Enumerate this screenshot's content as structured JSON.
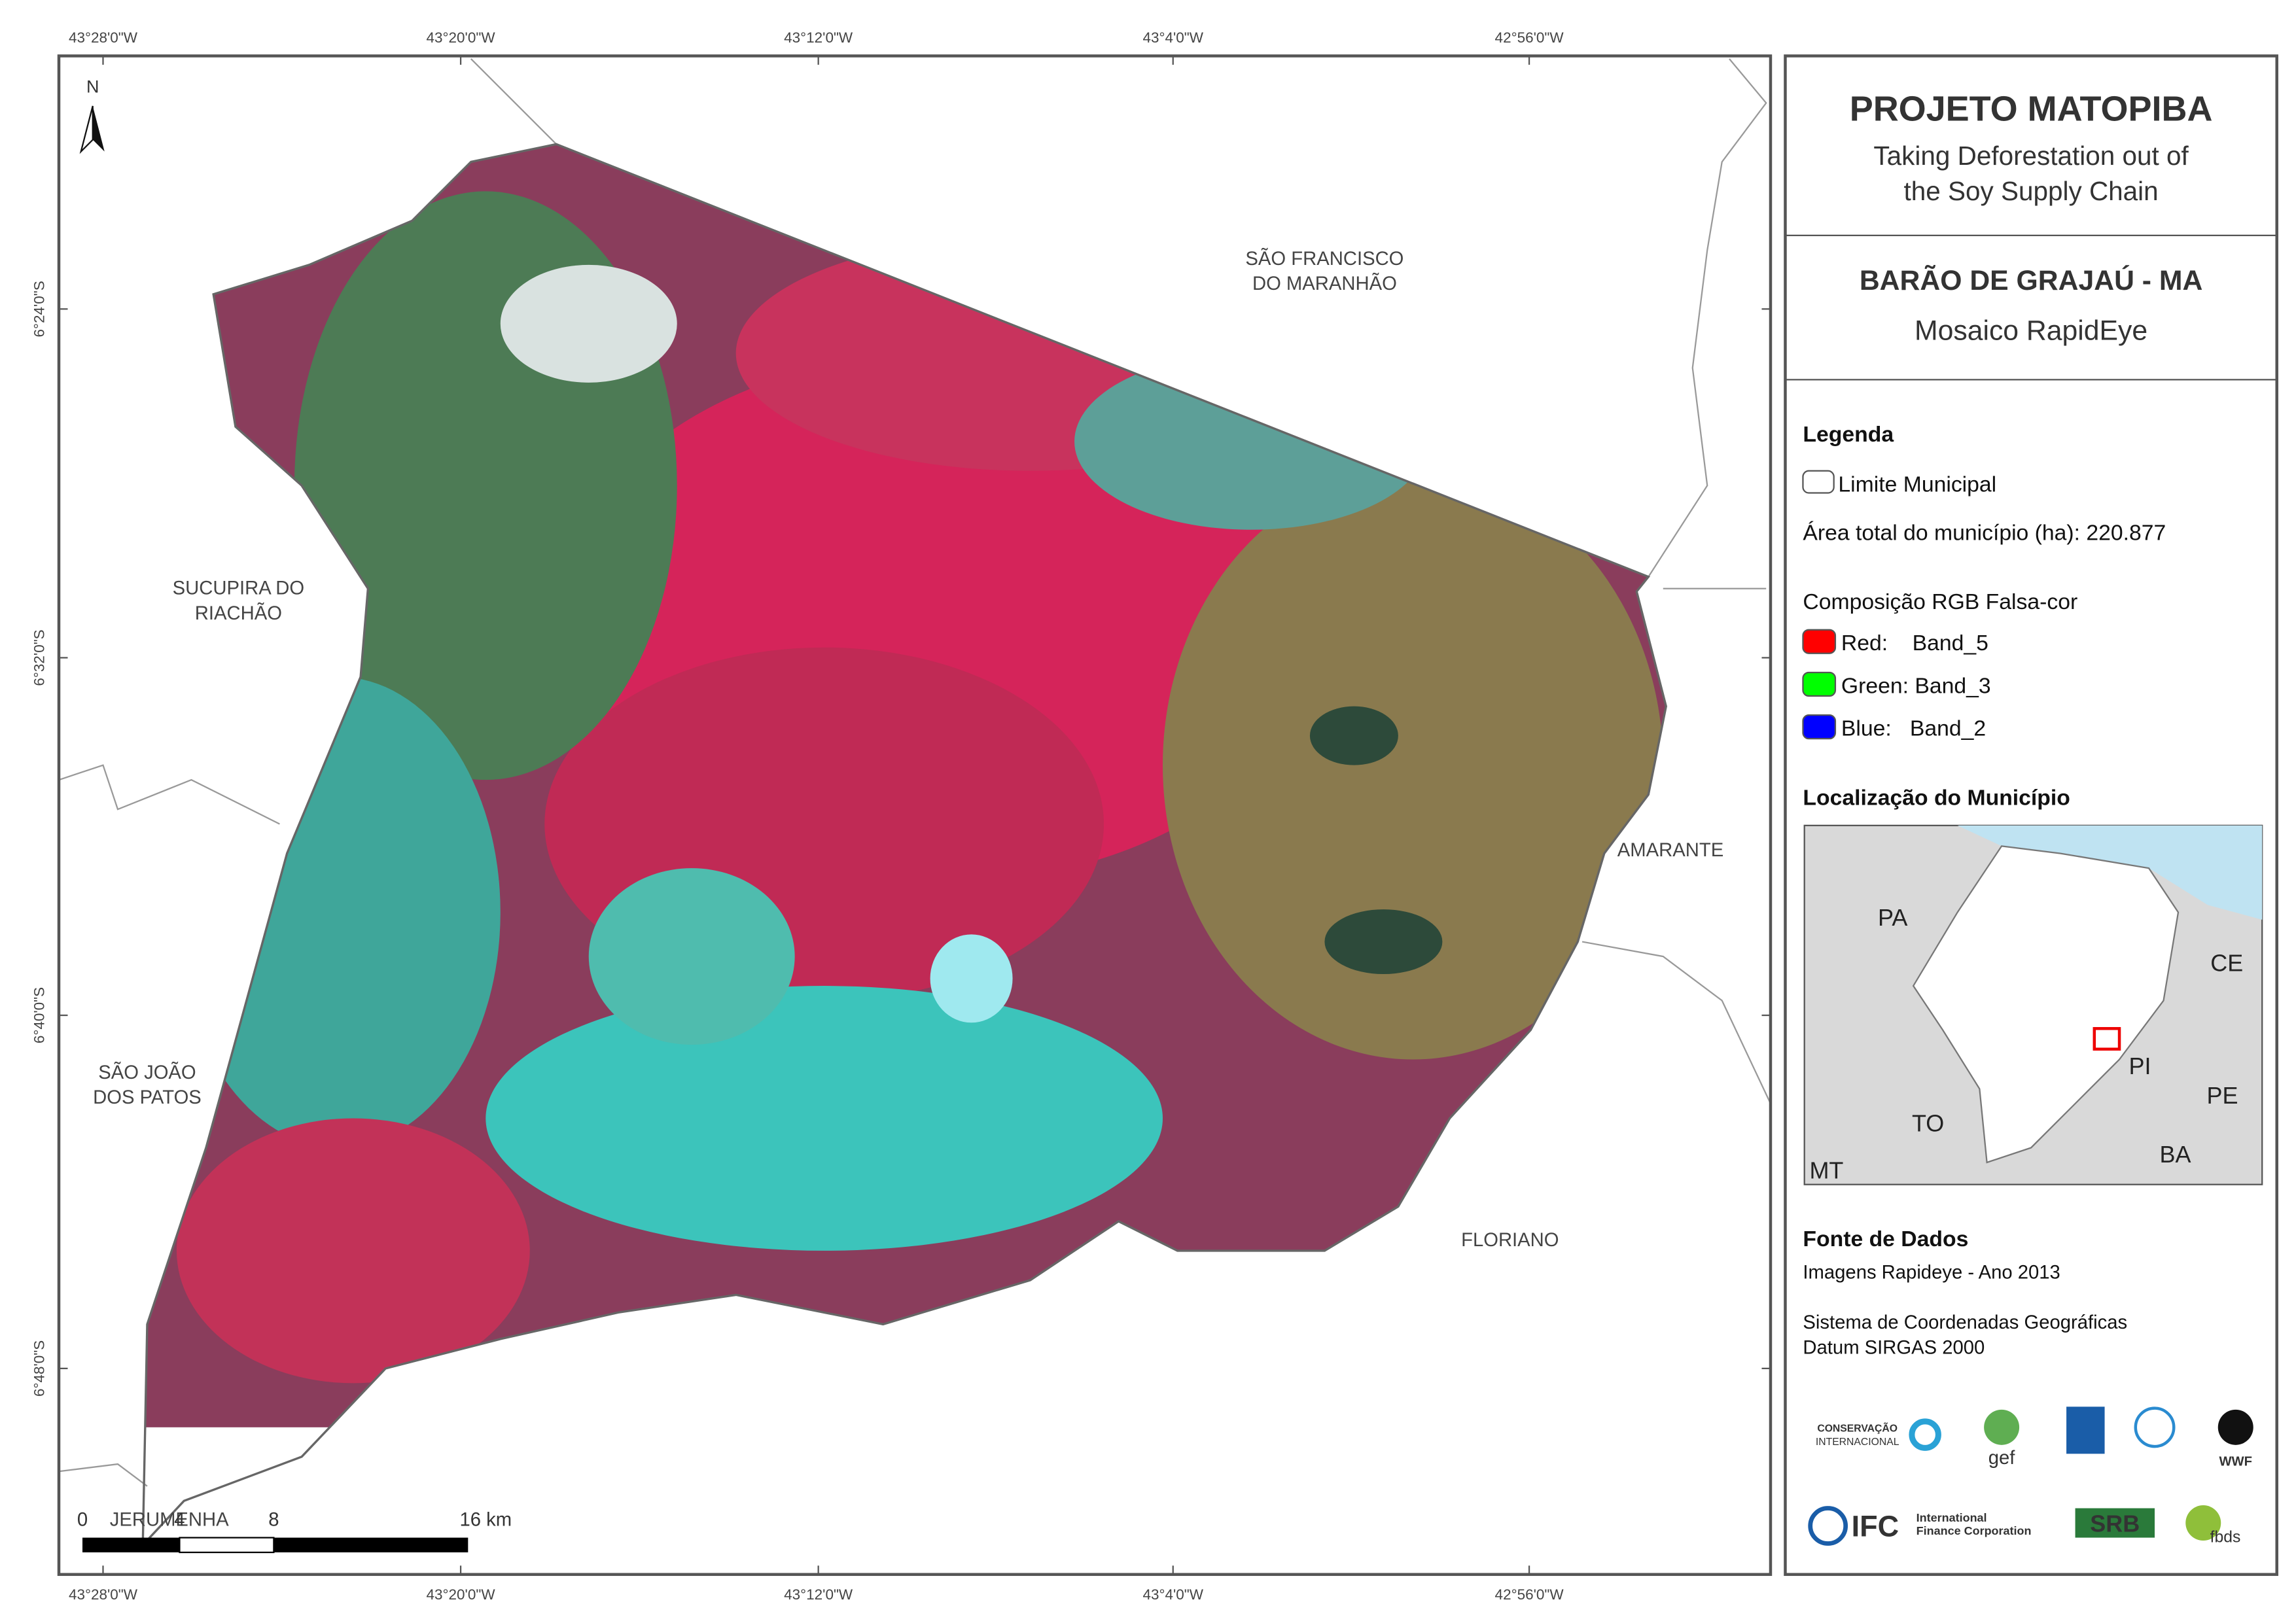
{
  "map": {
    "north": "N",
    "lon_labels": [
      "43°28'0\"W",
      "43°20'0\"W",
      "43°12'0\"W",
      "43°4'0\"W",
      "42°56'0\"W"
    ],
    "lat_labels": [
      "6°24'0\"S",
      "6°32'0\"S",
      "6°40'0\"S",
      "6°48'0\"S"
    ],
    "places": [
      {
        "lines": [
          "SÃO FRANCISCO",
          "DO MARANHÃO"
        ]
      },
      {
        "lines": [
          "SUCUPIRA DO",
          "RIACHÃO"
        ]
      },
      {
        "lines": [
          "AMARANTE"
        ]
      },
      {
        "lines": [
          "SÃO JOÃO",
          "DOS PATOS"
        ]
      },
      {
        "lines": [
          "FLORIANO"
        ]
      },
      {
        "lines": [
          "JERUMENHA"
        ]
      }
    ],
    "scale_labels": [
      "0",
      "4",
      "8",
      "16 km"
    ]
  },
  "panel": {
    "title": "PROJETO MATOPIBA",
    "subtitle": [
      "Taking Deforestation out of",
      "the Soy Supply Chain"
    ],
    "municipality": "BARÃO DE GRAJAÚ - MA",
    "product": "Mosaico RapidEye",
    "legend": {
      "title": "Legenda",
      "boundary": "Limite Municipal",
      "area": "Área total do município (ha): 220.877",
      "rgb_title": "Composição RGB Falsa-cor",
      "bands": [
        {
          "label": "Red:    Band_5",
          "color": "#ff0000"
        },
        {
          "label": "Green: Band_3",
          "color": "#00ff00"
        },
        {
          "label": "Blue:   Band_2",
          "color": "#0000ff"
        }
      ]
    },
    "location": {
      "title": "Localização do Município",
      "states": [
        "PA",
        "CE",
        "PI",
        "PE",
        "TO",
        "BA",
        "MT"
      ]
    },
    "sources": {
      "title": "Fonte de Dados",
      "lines": [
        "Imagens Rapideye - Ano 2013",
        "Sistema de Coordenadas Geográficas",
        "Datum SIRGAS 2000"
      ]
    },
    "logos": [
      "CONSERVAÇÃO",
      "INTERNACIONAL",
      "gef",
      "WWF",
      "IFC",
      "International",
      "Finance Corporation",
      "SRB",
      "fbds"
    ]
  }
}
